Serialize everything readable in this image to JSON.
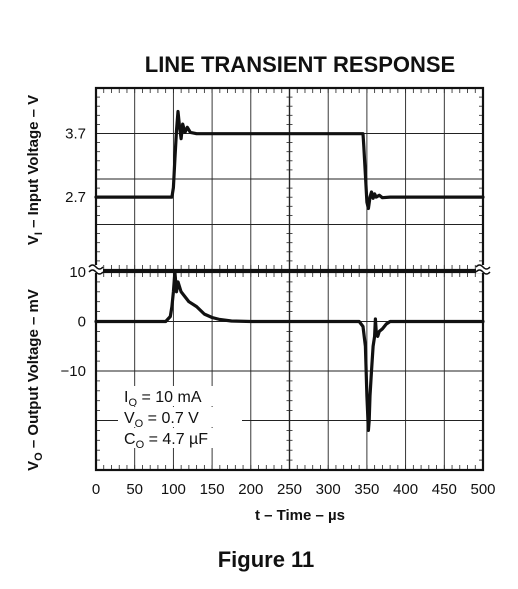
{
  "chart_data": {
    "type": "line",
    "title": "LINE TRANSIENT RESPONSE",
    "caption": "Figure 11",
    "xlabel": "t – Time – µs",
    "xlim": [
      0,
      500
    ],
    "x_ticks": [
      "0",
      "50",
      "100",
      "150",
      "200",
      "250",
      "300",
      "350",
      "400",
      "450",
      "500"
    ],
    "grid": true,
    "panels": [
      {
        "name": "input",
        "ylabel": {
          "main": "V",
          "sub": "I",
          "rest": " – Input Voltage – V"
        },
        "ylim": [
          1.55,
          4.42
        ],
        "y_ticks": [
          {
            "label": "3.7",
            "value": 3.7
          },
          {
            "label": "2.7",
            "value": 2.7
          }
        ],
        "series": [
          {
            "x": [
              0,
              98,
              100,
              102,
              104,
              106,
              108,
              110,
              112,
              115,
              118,
              122,
              130,
              340,
              345,
              346,
              348,
              350,
              352,
              354,
              356,
              358,
              360,
              362,
              366,
              370,
              380,
              500
            ],
            "y": [
              2.7,
              2.7,
              2.85,
              3.3,
              3.75,
              4.05,
              3.8,
              3.62,
              3.85,
              3.72,
              3.8,
              3.72,
              3.7,
              3.7,
              3.7,
              3.5,
              3.05,
              2.62,
              2.52,
              2.7,
              2.78,
              2.68,
              2.75,
              2.7,
              2.73,
              2.69,
              2.7,
              2.7
            ]
          }
        ]
      },
      {
        "name": "output",
        "ylabel": {
          "main": "V",
          "sub": "O",
          "rest": " – Output Voltage – mV"
        },
        "ylim": [
          -30,
          10
        ],
        "y_ticks": [
          {
            "label": "10",
            "value": 10
          },
          {
            "label": "0",
            "value": 0
          },
          {
            "label": "−10",
            "value": -10
          }
        ],
        "series": [
          {
            "x": [
              0,
              90,
              96,
              98,
              100,
              102,
              104,
              106,
              110,
              120,
              130,
              140,
              150,
              160,
              175,
              200,
              340,
              345,
              348,
              350,
              352,
              353,
              354,
              356,
              358,
              360,
              361,
              362,
              364,
              366,
              370,
              375,
              380,
              390,
              400,
              500
            ],
            "y": [
              0,
              0,
              1,
              3,
              6,
              10,
              6,
              8,
              6,
              4,
              3,
              1.5,
              0.8,
              0.4,
              0.1,
              0,
              0,
              -1,
              -5,
              -15,
              -22,
              -20,
              -15,
              -10,
              -5,
              -3,
              0.5,
              -2,
              -3,
              -2,
              -1.5,
              -0.5,
              0,
              0,
              0,
              0
            ]
          }
        ]
      }
    ],
    "annotations": [
      {
        "main": "I",
        "sub": "O",
        "rest": " = 10 mA"
      },
      {
        "main": "V",
        "sub": "O",
        "rest": " = 0.7 V"
      },
      {
        "main": "C",
        "sub": "O",
        "rest": " = 4.7 µF"
      }
    ]
  }
}
